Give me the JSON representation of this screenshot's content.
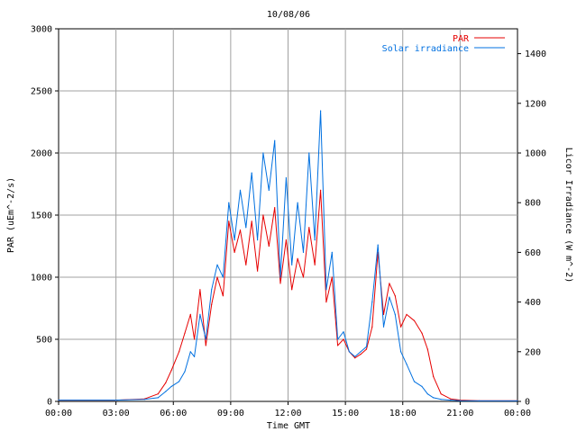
{
  "chart_data": {
    "type": "line",
    "title": "10/08/06",
    "xlabel": "Time GMT",
    "ylabel_left": "PAR (uEm^-2/s)",
    "ylabel_right": "Licor Irradiance (W m^-2)",
    "x_ticks": [
      "00:00",
      "03:00",
      "06:00",
      "09:00",
      "12:00",
      "15:00",
      "18:00",
      "21:00",
      "00:00"
    ],
    "x_range_hours": [
      0,
      24
    ],
    "y_left": {
      "min": 0,
      "max": 3000,
      "ticks": [
        "0",
        "500",
        "1000",
        "1500",
        "2000",
        "2500",
        "3000"
      ]
    },
    "y_right": {
      "min": 0,
      "max": 1500,
      "ticks": [
        "0",
        "200",
        "400",
        "600",
        "800",
        "1000",
        "1200",
        "1400"
      ]
    },
    "grid": true,
    "legend_position": "top-right",
    "series": [
      {
        "name": "PAR",
        "axis": "left",
        "color": "#e60000",
        "x_hours": [
          0,
          3,
          4.5,
          5.2,
          5.6,
          5.9,
          6.3,
          6.6,
          6.9,
          7.1,
          7.4,
          7.7,
          8.0,
          8.3,
          8.6,
          8.9,
          9.2,
          9.5,
          9.8,
          10.1,
          10.4,
          10.7,
          11.0,
          11.3,
          11.6,
          11.9,
          12.2,
          12.5,
          12.8,
          13.1,
          13.4,
          13.7,
          14.0,
          14.3,
          14.6,
          14.9,
          15.2,
          15.5,
          15.8,
          16.1,
          16.4,
          16.7,
          17.0,
          17.3,
          17.6,
          17.9,
          18.2,
          18.6,
          19.0,
          19.3,
          19.6,
          20.0,
          20.5,
          21,
          22,
          24
        ],
        "values": [
          10,
          10,
          20,
          60,
          150,
          250,
          400,
          550,
          700,
          500,
          900,
          450,
          780,
          1000,
          850,
          1450,
          1200,
          1380,
          1100,
          1450,
          1050,
          1500,
          1250,
          1560,
          950,
          1300,
          900,
          1150,
          1000,
          1400,
          1100,
          1700,
          800,
          1000,
          450,
          500,
          400,
          350,
          380,
          420,
          600,
          1200,
          700,
          950,
          850,
          600,
          700,
          650,
          550,
          420,
          200,
          60,
          20,
          10,
          5,
          5
        ]
      },
      {
        "name": "Solar irradiance",
        "axis": "right",
        "color": "#0070e0",
        "x_hours": [
          0,
          3,
          4.5,
          5.2,
          5.6,
          5.9,
          6.3,
          6.6,
          6.9,
          7.1,
          7.4,
          7.7,
          8.0,
          8.3,
          8.6,
          8.9,
          9.2,
          9.5,
          9.8,
          10.1,
          10.4,
          10.7,
          11.0,
          11.3,
          11.6,
          11.9,
          12.2,
          12.5,
          12.8,
          13.1,
          13.4,
          13.7,
          14.0,
          14.3,
          14.6,
          14.9,
          15.2,
          15.5,
          15.8,
          16.1,
          16.4,
          16.7,
          17.0,
          17.3,
          17.6,
          17.9,
          18.2,
          18.6,
          19.0,
          19.3,
          19.6,
          20.0,
          20.5,
          21,
          22,
          24
        ],
        "values": [
          5,
          5,
          8,
          15,
          40,
          60,
          80,
          120,
          200,
          180,
          350,
          250,
          450,
          550,
          500,
          800,
          650,
          850,
          700,
          920,
          650,
          1000,
          850,
          1050,
          500,
          900,
          550,
          800,
          600,
          1000,
          650,
          1170,
          450,
          600,
          250,
          280,
          200,
          180,
          200,
          220,
          400,
          630,
          300,
          420,
          350,
          200,
          150,
          80,
          60,
          30,
          15,
          8,
          5,
          3,
          2,
          2
        ]
      }
    ]
  }
}
